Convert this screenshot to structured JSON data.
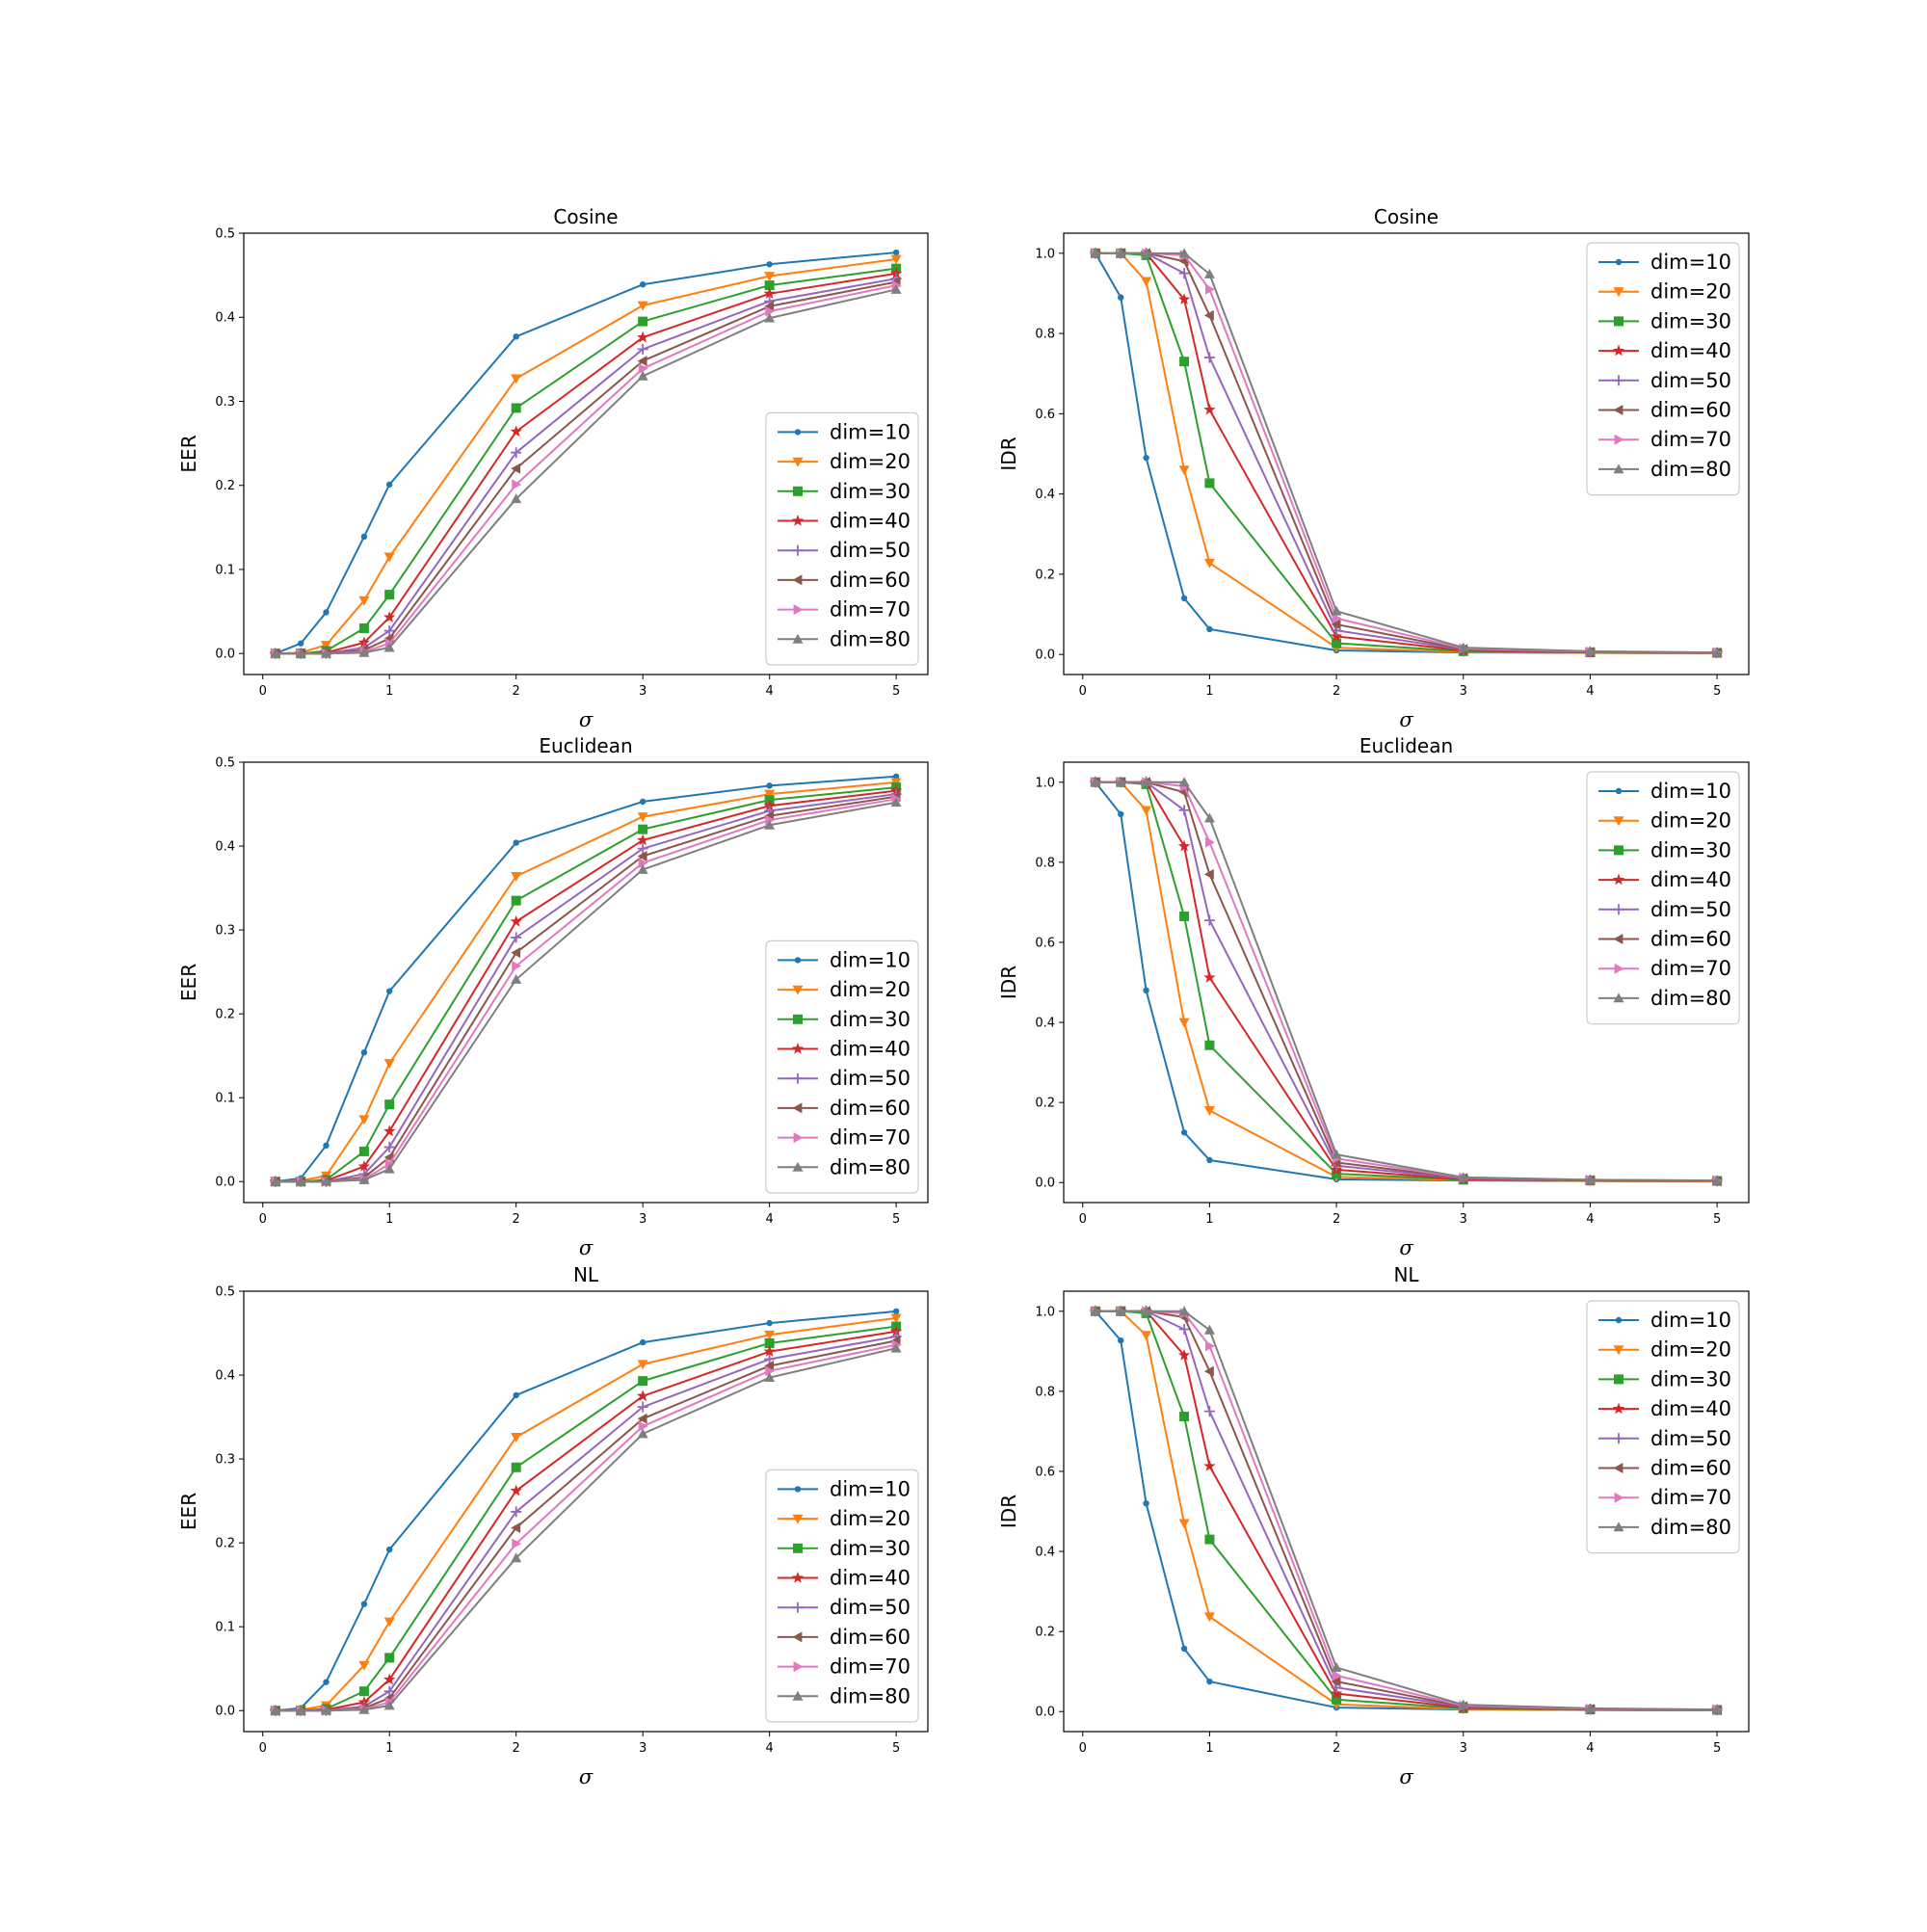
{
  "figure": {
    "series_names": [
      "dim=10",
      "dim=20",
      "dim=30",
      "dim=40",
      "dim=50",
      "dim=60",
      "dim=70",
      "dim=80"
    ],
    "series_colors": [
      "#1f77b4",
      "#ff7f0e",
      "#2ca02c",
      "#d62728",
      "#9467bd",
      "#8c564b",
      "#e377c2",
      "#7f7f7f"
    ],
    "series_markers": [
      "point",
      "triangle-down",
      "square",
      "star",
      "plus",
      "triangle-left",
      "triangle-right",
      "triangle-up"
    ]
  },
  "chart_data": [
    {
      "type": "line",
      "title": "Cosine",
      "xlabel": "σ",
      "ylabel": "EER",
      "xlim": [
        -0.15,
        5.25
      ],
      "ylim": [
        -0.025,
        0.5
      ],
      "xticks": [
        0,
        1,
        2,
        3,
        4,
        5
      ],
      "yticks": [
        0.0,
        0.1,
        0.2,
        0.3,
        0.4,
        0.5
      ],
      "legend": "lower-right",
      "x": [
        0.1,
        0.3,
        0.5,
        0.8,
        1,
        2,
        3,
        4,
        5
      ],
      "series": [
        {
          "name": "dim=10",
          "values": [
            0.0,
            0.012,
            0.049,
            0.139,
            0.201,
            0.377,
            0.439,
            0.463,
            0.477
          ]
        },
        {
          "name": "dim=20",
          "values": [
            0.0,
            0.001,
            0.01,
            0.063,
            0.115,
            0.327,
            0.414,
            0.449,
            0.469
          ]
        },
        {
          "name": "dim=30",
          "values": [
            0.0,
            0.0,
            0.003,
            0.03,
            0.07,
            0.292,
            0.395,
            0.438,
            0.458
          ]
        },
        {
          "name": "dim=40",
          "values": [
            0.0,
            0.0,
            0.001,
            0.013,
            0.043,
            0.264,
            0.376,
            0.428,
            0.452
          ]
        },
        {
          "name": "dim=50",
          "values": [
            0.0,
            0.0,
            0.0,
            0.007,
            0.027,
            0.239,
            0.362,
            0.419,
            0.446
          ]
        },
        {
          "name": "dim=60",
          "values": [
            0.0,
            0.0,
            0.0,
            0.004,
            0.018,
            0.22,
            0.348,
            0.413,
            0.442
          ]
        },
        {
          "name": "dim=70",
          "values": [
            0.0,
            0.0,
            0.0,
            0.002,
            0.012,
            0.201,
            0.339,
            0.407,
            0.438
          ]
        },
        {
          "name": "dim=80",
          "values": [
            0.0,
            0.0,
            0.0,
            0.001,
            0.007,
            0.184,
            0.33,
            0.399,
            0.433
          ]
        }
      ]
    },
    {
      "type": "line",
      "title": "Cosine",
      "xlabel": "σ",
      "ylabel": "IDR",
      "xlim": [
        -0.15,
        5.25
      ],
      "ylim": [
        -0.05,
        1.05
      ],
      "xticks": [
        0,
        1,
        2,
        3,
        4,
        5
      ],
      "yticks": [
        0.0,
        0.2,
        0.4,
        0.6,
        0.8,
        1.0
      ],
      "legend": "upper-right",
      "x": [
        0.1,
        0.3,
        0.5,
        0.8,
        1,
        2,
        3,
        4,
        5
      ],
      "series": [
        {
          "name": "dim=10",
          "values": [
            1.0,
            0.89,
            0.49,
            0.14,
            0.063,
            0.01,
            0.005,
            0.004,
            0.003
          ]
        },
        {
          "name": "dim=20",
          "values": [
            1.0,
            1.0,
            0.93,
            0.46,
            0.228,
            0.017,
            0.006,
            0.004,
            0.003
          ]
        },
        {
          "name": "dim=30",
          "values": [
            1.0,
            1.0,
            0.995,
            0.73,
            0.427,
            0.028,
            0.008,
            0.005,
            0.004
          ]
        },
        {
          "name": "dim=40",
          "values": [
            1.0,
            1.0,
            1.0,
            0.885,
            0.61,
            0.045,
            0.01,
            0.005,
            0.004
          ]
        },
        {
          "name": "dim=50",
          "values": [
            1.0,
            1.0,
            1.0,
            0.95,
            0.74,
            0.06,
            0.012,
            0.006,
            0.004
          ]
        },
        {
          "name": "dim=60",
          "values": [
            1.0,
            1.0,
            1.0,
            0.98,
            0.845,
            0.075,
            0.013,
            0.006,
            0.004
          ]
        },
        {
          "name": "dim=70",
          "values": [
            1.0,
            1.0,
            1.0,
            0.995,
            0.91,
            0.09,
            0.015,
            0.007,
            0.005
          ]
        },
        {
          "name": "dim=80",
          "values": [
            1.0,
            1.0,
            1.0,
            1.0,
            0.948,
            0.108,
            0.017,
            0.008,
            0.005
          ]
        }
      ]
    },
    {
      "type": "line",
      "title": "Euclidean",
      "xlabel": "σ",
      "ylabel": "EER",
      "xlim": [
        -0.15,
        5.25
      ],
      "ylim": [
        -0.025,
        0.5
      ],
      "xticks": [
        0,
        1,
        2,
        3,
        4,
        5
      ],
      "yticks": [
        0.0,
        0.1,
        0.2,
        0.3,
        0.4,
        0.5
      ],
      "legend": "lower-right",
      "x": [
        0.1,
        0.3,
        0.5,
        0.8,
        1,
        2,
        3,
        4,
        5
      ],
      "series": [
        {
          "name": "dim=10",
          "values": [
            0.0,
            0.004,
            0.043,
            0.154,
            0.227,
            0.404,
            0.453,
            0.472,
            0.483
          ]
        },
        {
          "name": "dim=20",
          "values": [
            0.0,
            0.001,
            0.007,
            0.074,
            0.141,
            0.364,
            0.435,
            0.462,
            0.476
          ]
        },
        {
          "name": "dim=30",
          "values": [
            0.0,
            0.0,
            0.002,
            0.036,
            0.092,
            0.335,
            0.42,
            0.455,
            0.47
          ]
        },
        {
          "name": "dim=40",
          "values": [
            0.0,
            0.0,
            0.001,
            0.018,
            0.06,
            0.31,
            0.407,
            0.448,
            0.466
          ]
        },
        {
          "name": "dim=50",
          "values": [
            0.0,
            0.0,
            0.0,
            0.009,
            0.041,
            0.291,
            0.397,
            0.442,
            0.462
          ]
        },
        {
          "name": "dim=60",
          "values": [
            0.0,
            0.0,
            0.0,
            0.005,
            0.029,
            0.273,
            0.388,
            0.436,
            0.459
          ]
        },
        {
          "name": "dim=70",
          "values": [
            0.0,
            0.0,
            0.0,
            0.003,
            0.021,
            0.257,
            0.38,
            0.431,
            0.456
          ]
        },
        {
          "name": "dim=80",
          "values": [
            0.0,
            0.0,
            0.0,
            0.002,
            0.015,
            0.241,
            0.372,
            0.425,
            0.452
          ]
        }
      ]
    },
    {
      "type": "line",
      "title": "Euclidean",
      "xlabel": "σ",
      "ylabel": "IDR",
      "xlim": [
        -0.15,
        5.25
      ],
      "ylim": [
        -0.05,
        1.05
      ],
      "xticks": [
        0,
        1,
        2,
        3,
        4,
        5
      ],
      "yticks": [
        0.0,
        0.2,
        0.4,
        0.6,
        0.8,
        1.0
      ],
      "legend": "upper-right",
      "x": [
        0.1,
        0.3,
        0.5,
        0.8,
        1,
        2,
        3,
        4,
        5
      ],
      "series": [
        {
          "name": "dim=10",
          "values": [
            1.0,
            0.92,
            0.48,
            0.125,
            0.056,
            0.008,
            0.005,
            0.004,
            0.003
          ]
        },
        {
          "name": "dim=20",
          "values": [
            1.0,
            1.0,
            0.93,
            0.4,
            0.18,
            0.014,
            0.006,
            0.004,
            0.003
          ]
        },
        {
          "name": "dim=30",
          "values": [
            1.0,
            1.0,
            0.995,
            0.665,
            0.343,
            0.022,
            0.007,
            0.005,
            0.004
          ]
        },
        {
          "name": "dim=40",
          "values": [
            1.0,
            1.0,
            1.0,
            0.84,
            0.512,
            0.032,
            0.008,
            0.005,
            0.004
          ]
        },
        {
          "name": "dim=50",
          "values": [
            1.0,
            1.0,
            1.0,
            0.93,
            0.655,
            0.042,
            0.01,
            0.006,
            0.004
          ]
        },
        {
          "name": "dim=60",
          "values": [
            1.0,
            1.0,
            1.0,
            0.975,
            0.77,
            0.05,
            0.011,
            0.006,
            0.004
          ]
        },
        {
          "name": "dim=70",
          "values": [
            1.0,
            1.0,
            1.0,
            0.99,
            0.85,
            0.06,
            0.012,
            0.007,
            0.005
          ]
        },
        {
          "name": "dim=80",
          "values": [
            1.0,
            1.0,
            1.0,
            1.0,
            0.91,
            0.07,
            0.013,
            0.007,
            0.005
          ]
        }
      ]
    },
    {
      "type": "line",
      "title": "NL",
      "xlabel": "σ",
      "ylabel": "EER",
      "xlim": [
        -0.15,
        5.25
      ],
      "ylim": [
        -0.025,
        0.5
      ],
      "xticks": [
        0,
        1,
        2,
        3,
        4,
        5
      ],
      "yticks": [
        0.0,
        0.1,
        0.2,
        0.3,
        0.4,
        0.5
      ],
      "legend": "lower-right",
      "x": [
        0.1,
        0.3,
        0.5,
        0.8,
        1,
        2,
        3,
        4,
        5
      ],
      "series": [
        {
          "name": "dim=10",
          "values": [
            0.0,
            0.003,
            0.034,
            0.127,
            0.192,
            0.376,
            0.439,
            0.462,
            0.476
          ]
        },
        {
          "name": "dim=20",
          "values": [
            0.0,
            0.001,
            0.006,
            0.054,
            0.106,
            0.326,
            0.413,
            0.448,
            0.468
          ]
        },
        {
          "name": "dim=30",
          "values": [
            0.0,
            0.0,
            0.002,
            0.023,
            0.063,
            0.29,
            0.393,
            0.438,
            0.458
          ]
        },
        {
          "name": "dim=40",
          "values": [
            0.0,
            0.0,
            0.001,
            0.01,
            0.037,
            0.262,
            0.375,
            0.428,
            0.452
          ]
        },
        {
          "name": "dim=50",
          "values": [
            0.0,
            0.0,
            0.0,
            0.005,
            0.023,
            0.237,
            0.362,
            0.419,
            0.446
          ]
        },
        {
          "name": "dim=60",
          "values": [
            0.0,
            0.0,
            0.0,
            0.003,
            0.015,
            0.218,
            0.348,
            0.411,
            0.441
          ]
        },
        {
          "name": "dim=70",
          "values": [
            0.0,
            0.0,
            0.0,
            0.002,
            0.01,
            0.199,
            0.339,
            0.405,
            0.436
          ]
        },
        {
          "name": "dim=80",
          "values": [
            0.0,
            0.0,
            0.0,
            0.001,
            0.006,
            0.182,
            0.33,
            0.397,
            0.432
          ]
        }
      ]
    },
    {
      "type": "line",
      "title": "NL",
      "xlabel": "σ",
      "ylabel": "IDR",
      "xlim": [
        -0.15,
        5.25
      ],
      "ylim": [
        -0.05,
        1.05
      ],
      "xticks": [
        0,
        1,
        2,
        3,
        4,
        5
      ],
      "yticks": [
        0.0,
        0.2,
        0.4,
        0.6,
        0.8,
        1.0
      ],
      "legend": "upper-right",
      "x": [
        0.1,
        0.3,
        0.5,
        0.8,
        1,
        2,
        3,
        4,
        5
      ],
      "series": [
        {
          "name": "dim=10",
          "values": [
            1.0,
            0.927,
            0.52,
            0.157,
            0.075,
            0.01,
            0.005,
            0.004,
            0.003
          ]
        },
        {
          "name": "dim=20",
          "values": [
            1.0,
            1.0,
            0.94,
            0.47,
            0.237,
            0.018,
            0.006,
            0.004,
            0.003
          ]
        },
        {
          "name": "dim=30",
          "values": [
            1.0,
            1.0,
            0.995,
            0.737,
            0.43,
            0.03,
            0.008,
            0.005,
            0.004
          ]
        },
        {
          "name": "dim=40",
          "values": [
            1.0,
            1.0,
            1.0,
            0.89,
            0.613,
            0.045,
            0.01,
            0.005,
            0.004
          ]
        },
        {
          "name": "dim=50",
          "values": [
            1.0,
            1.0,
            1.0,
            0.955,
            0.75,
            0.06,
            0.012,
            0.006,
            0.004
          ]
        },
        {
          "name": "dim=60",
          "values": [
            1.0,
            1.0,
            1.0,
            0.985,
            0.85,
            0.075,
            0.013,
            0.006,
            0.004
          ]
        },
        {
          "name": "dim=70",
          "values": [
            1.0,
            1.0,
            1.0,
            0.995,
            0.913,
            0.09,
            0.015,
            0.007,
            0.005
          ]
        },
        {
          "name": "dim=80",
          "values": [
            1.0,
            1.0,
            1.0,
            1.0,
            0.953,
            0.11,
            0.017,
            0.008,
            0.005
          ]
        }
      ]
    }
  ]
}
